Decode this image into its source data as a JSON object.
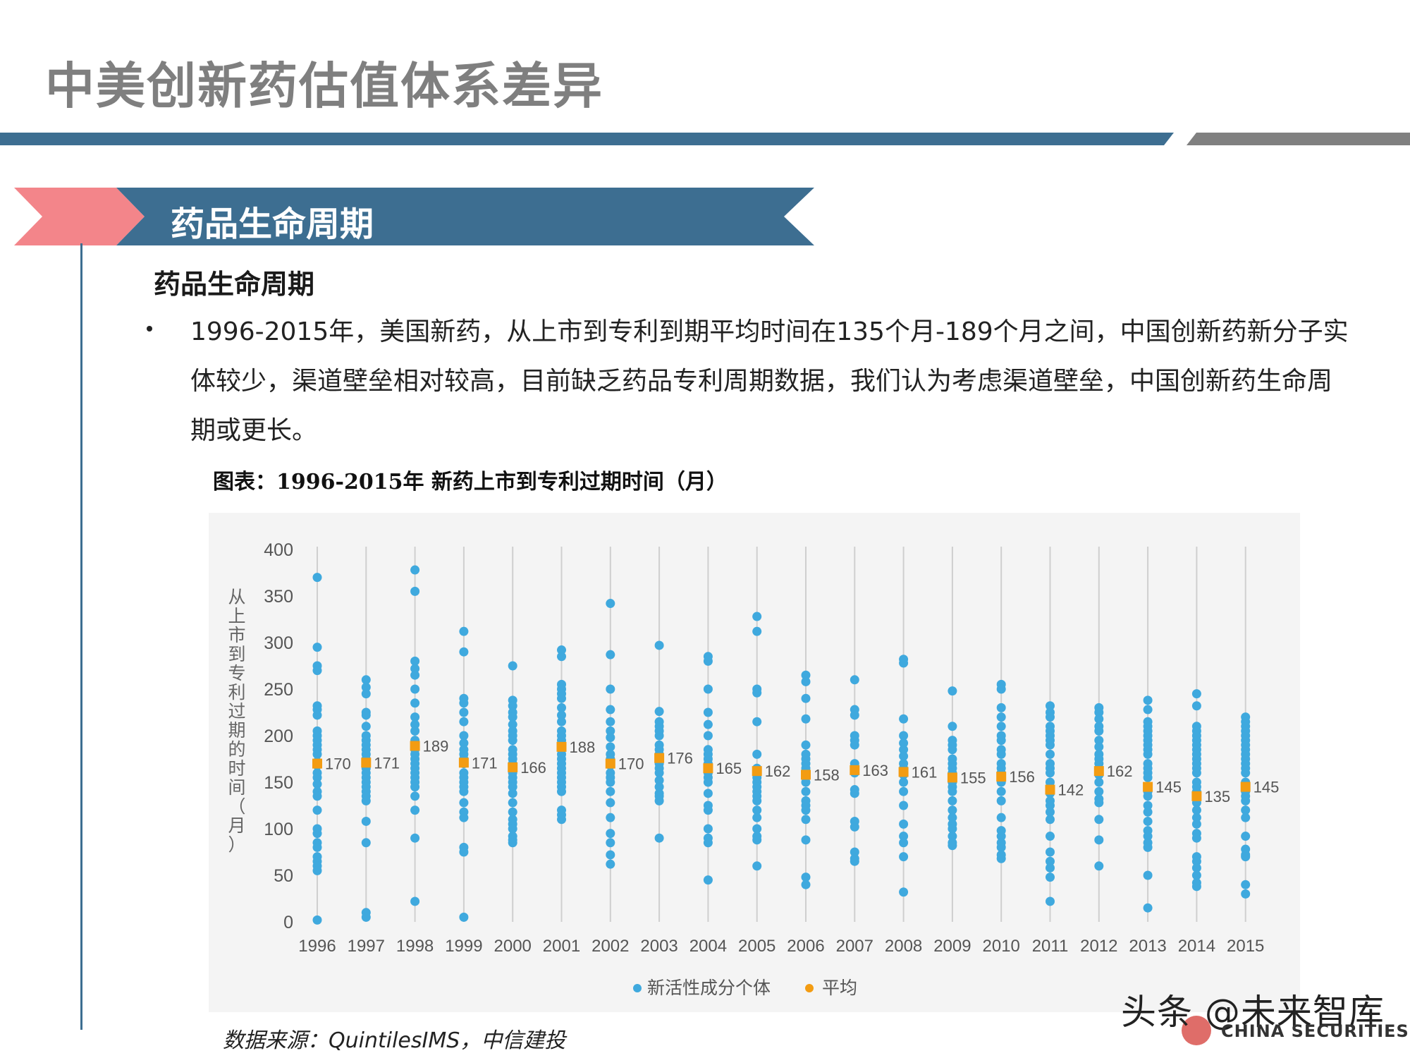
{
  "header": {
    "title": "中美创新药估值体系差异",
    "colors": {
      "accent_blue": "#3d6e91",
      "accent_gray": "#808080",
      "accent_pink": "#f08080"
    }
  },
  "section": {
    "title": "药品生命周期"
  },
  "content": {
    "sub_heading": "药品生命周期",
    "bullet": "1996-2015年，美国新药，从上市到专利到期平均时间在135个月-189个月之间，中国创新药新分子实体较少，渠道壁垒相对较高，目前缺乏药品专利周期数据，我们认为考虑渠道壁垒，中国创新药生命周期或更长。"
  },
  "chart_caption": "图表：1996-2015年 新药上市到专利过期时间（月）",
  "source": "数据来源：QuintilesIMS，中信建投",
  "watermark": {
    "text": "头条 @未来智库",
    "sub": "CHINA SECURITIES"
  },
  "chart_data": {
    "type": "scatter",
    "title": "",
    "xlabel": "",
    "ylabel": "从上市到专利过期的时间（月）",
    "ylim": [
      0,
      400
    ],
    "yticks": [
      0,
      50,
      100,
      150,
      200,
      250,
      300,
      350,
      400
    ],
    "grid": "vertical",
    "legend_position": "bottom-center",
    "categories": [
      "1996",
      "1997",
      "1998",
      "1999",
      "2000",
      "2001",
      "2002",
      "2003",
      "2004",
      "2005",
      "2006",
      "2007",
      "2008",
      "2009",
      "2010",
      "2011",
      "2012",
      "2013",
      "2014",
      "2015"
    ],
    "series": [
      {
        "name": "新活性成分个体",
        "color": "#3fa9de",
        "values": [
          [
            370,
            295,
            275,
            270,
            232,
            228,
            222,
            205,
            200,
            195,
            190,
            185,
            180,
            172,
            168,
            160,
            155,
            148,
            140,
            135,
            120,
            100,
            95,
            85,
            80,
            70,
            65,
            60,
            55,
            2
          ],
          [
            260,
            252,
            245,
            225,
            222,
            210,
            200,
            195,
            190,
            185,
            180,
            175,
            170,
            165,
            160,
            155,
            150,
            145,
            140,
            135,
            130,
            108,
            85,
            10,
            5
          ],
          [
            378,
            355,
            280,
            272,
            265,
            250,
            235,
            220,
            212,
            205,
            195,
            190,
            185,
            180,
            175,
            170,
            165,
            160,
            155,
            150,
            145,
            135,
            120,
            90,
            22
          ],
          [
            312,
            290,
            240,
            235,
            225,
            215,
            200,
            192,
            185,
            180,
            175,
            170,
            160,
            155,
            150,
            145,
            140,
            128,
            118,
            112,
            80,
            75,
            5
          ],
          [
            275,
            238,
            232,
            225,
            220,
            212,
            205,
            200,
            195,
            185,
            180,
            175,
            170,
            160,
            155,
            150,
            145,
            138,
            128,
            118,
            110,
            105,
            100,
            92,
            88,
            85
          ],
          [
            292,
            285,
            255,
            250,
            245,
            240,
            230,
            222,
            215,
            205,
            200,
            195,
            185,
            180,
            175,
            170,
            165,
            160,
            155,
            150,
            145,
            140,
            120,
            115,
            110
          ],
          [
            342,
            287,
            250,
            228,
            215,
            205,
            198,
            188,
            180,
            175,
            168,
            160,
            155,
            150,
            140,
            128,
            112,
            95,
            85,
            72,
            62
          ],
          [
            297,
            226,
            215,
            210,
            205,
            200,
            190,
            185,
            180,
            175,
            170,
            165,
            160,
            152,
            145,
            138,
            135,
            130,
            90
          ],
          [
            285,
            280,
            250,
            225,
            212,
            200,
            185,
            180,
            175,
            170,
            165,
            160,
            155,
            150,
            138,
            125,
            120,
            100,
            90,
            85,
            45
          ],
          [
            328,
            312,
            250,
            246,
            215,
            180,
            165,
            160,
            155,
            150,
            145,
            140,
            135,
            130,
            120,
            112,
            100,
            92,
            88,
            60
          ],
          [
            265,
            258,
            240,
            218,
            190,
            180,
            175,
            170,
            165,
            160,
            150,
            140,
            130,
            125,
            120,
            110,
            88,
            48,
            40
          ],
          [
            260,
            228,
            222,
            200,
            195,
            190,
            170,
            165,
            160,
            142,
            138,
            108,
            102,
            75,
            68,
            65
          ],
          [
            282,
            278,
            218,
            200,
            192,
            185,
            178,
            170,
            165,
            158,
            150,
            140,
            125,
            105,
            92,
            85,
            70,
            32
          ],
          [
            248,
            210,
            195,
            190,
            185,
            175,
            170,
            165,
            160,
            155,
            150,
            145,
            140,
            130,
            120,
            112,
            105,
            100,
            92,
            85,
            82
          ],
          [
            255,
            250,
            230,
            220,
            210,
            200,
            195,
            185,
            180,
            170,
            165,
            160,
            150,
            140,
            130,
            112,
            98,
            92,
            85,
            80,
            72,
            68
          ],
          [
            232,
            225,
            220,
            210,
            205,
            200,
            195,
            190,
            180,
            170,
            165,
            160,
            150,
            145,
            138,
            130,
            125,
            118,
            110,
            92,
            75,
            65,
            58,
            48,
            22
          ],
          [
            230,
            225,
            218,
            210,
            205,
            195,
            188,
            180,
            175,
            170,
            165,
            158,
            150,
            140,
            132,
            128,
            110,
            88,
            60
          ],
          [
            238,
            228,
            215,
            210,
            205,
            200,
            195,
            190,
            185,
            180,
            170,
            165,
            160,
            155,
            145,
            140,
            135,
            125,
            118,
            108,
            98,
            92,
            85,
            80,
            50,
            15
          ],
          [
            245,
            232,
            210,
            205,
            200,
            195,
            190,
            185,
            180,
            175,
            170,
            165,
            160,
            150,
            145,
            140,
            132,
            128,
            120,
            112,
            105,
            95,
            90,
            70,
            65,
            58,
            50,
            42,
            38
          ],
          [
            220,
            215,
            210,
            205,
            200,
            195,
            190,
            185,
            180,
            175,
            170,
            165,
            160,
            150,
            145,
            140,
            135,
            130,
            120,
            112,
            92,
            78,
            72,
            70,
            40,
            30
          ]
        ]
      },
      {
        "name": "平均",
        "color": "#f39c12",
        "values": [
          170,
          171,
          189,
          171,
          166,
          188,
          170,
          176,
          165,
          162,
          158,
          163,
          161,
          155,
          156,
          142,
          162,
          145,
          135,
          145
        ]
      }
    ]
  }
}
